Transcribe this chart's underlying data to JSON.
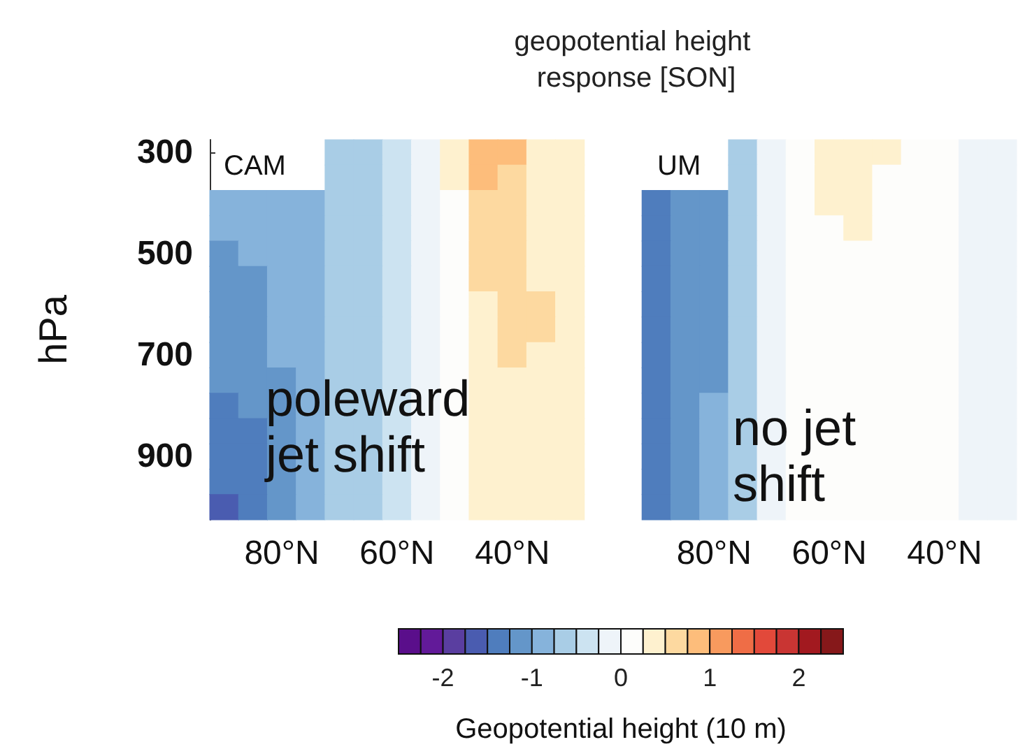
{
  "chart_data": {
    "type": "heatmap",
    "title": "geopotential height response [SON]",
    "ylabel": "hPa",
    "clabel": "Geopotential height (10 m)",
    "categories": [
      null,
      null,
      "80°N",
      null,
      null,
      null,
      "60°N",
      null,
      null,
      null,
      "40°N",
      null,
      null,
      null,
      null,
      null,
      null,
      "80°N",
      null,
      null,
      null,
      "60°N",
      null,
      null,
      null,
      "40°N",
      null,
      null
    ],
    "y_categories": [
      "300",
      null,
      null,
      null,
      "500",
      null,
      null,
      null,
      "700",
      null,
      null,
      null,
      "900",
      null,
      null
    ],
    "annotations": [
      "CAM",
      "poleward jet shift",
      "UM",
      "no jet shift"
    ],
    "clim": [
      -2.5,
      2.5
    ],
    "cticks": [
      -2,
      -1,
      0,
      1,
      2
    ],
    "cells": [
      [
        null,
        null,
        null,
        null,
        -0.7,
        -0.6,
        -0.4,
        -0.1,
        0.4,
        0.9,
        0.9,
        0.4,
        0.4,
        null,
        null,
        null,
        null,
        null,
        -0.6,
        -0.1,
        0.1,
        0.4,
        0.4,
        0.4,
        0.1,
        0.1,
        -0.1,
        -0.1
      ],
      [
        null,
        null,
        null,
        null,
        -0.7,
        -0.6,
        -0.4,
        -0.1,
        0.4,
        0.9,
        0.6,
        0.4,
        0.4,
        null,
        null,
        null,
        null,
        null,
        -0.6,
        -0.1,
        0.1,
        0.4,
        0.4,
        0.1,
        0.1,
        0.1,
        -0.1,
        -0.1
      ],
      [
        -0.9,
        -0.9,
        -0.9,
        -0.9,
        -0.6,
        -0.6,
        -0.4,
        -0.1,
        0.2,
        0.6,
        0.6,
        0.4,
        0.4,
        null,
        null,
        -1.4,
        -1.1,
        -1.1,
        -0.6,
        -0.1,
        0.1,
        0.4,
        0.4,
        0.1,
        0.1,
        0.1,
        -0.1,
        -0.1
      ],
      [
        -0.9,
        -0.9,
        -0.9,
        -0.9,
        -0.6,
        -0.6,
        -0.4,
        -0.1,
        0.2,
        0.6,
        0.6,
        0.4,
        0.4,
        null,
        null,
        -1.4,
        -1.1,
        -1.1,
        -0.6,
        -0.1,
        0.1,
        0.1,
        0.4,
        0.1,
        0.1,
        0.1,
        -0.1,
        -0.1
      ],
      [
        -1.1,
        -0.9,
        -0.9,
        -0.9,
        -0.6,
        -0.6,
        -0.4,
        -0.1,
        0.2,
        0.6,
        0.6,
        0.4,
        0.4,
        null,
        null,
        -1.4,
        -1.1,
        -1.1,
        -0.6,
        -0.1,
        0.1,
        0.1,
        0.1,
        0.1,
        0.1,
        0.1,
        -0.1,
        -0.1
      ],
      [
        -1.1,
        -1.1,
        -0.9,
        -0.9,
        -0.6,
        -0.6,
        -0.4,
        -0.1,
        0.2,
        0.6,
        0.6,
        0.4,
        0.4,
        null,
        null,
        -1.4,
        -1.1,
        -1.1,
        -0.6,
        -0.1,
        0.1,
        0.1,
        0.1,
        0.1,
        0.1,
        0.1,
        -0.1,
        -0.1
      ],
      [
        -1.1,
        -1.1,
        -0.9,
        -0.9,
        -0.6,
        -0.6,
        -0.4,
        -0.1,
        0.2,
        0.4,
        0.6,
        0.6,
        0.4,
        null,
        null,
        -1.4,
        -1.1,
        -1.1,
        -0.6,
        -0.1,
        0.1,
        0.1,
        0.1,
        0.1,
        0.1,
        0.1,
        -0.1,
        -0.1
      ],
      [
        -1.1,
        -1.1,
        -0.9,
        -0.9,
        -0.6,
        -0.6,
        -0.4,
        -0.1,
        0.2,
        0.4,
        0.6,
        0.6,
        0.4,
        null,
        null,
        -1.4,
        -1.1,
        -1.1,
        -0.6,
        -0.1,
        0.1,
        0.1,
        0.1,
        0.1,
        0.1,
        0.1,
        -0.1,
        -0.1
      ],
      [
        -1.1,
        -1.1,
        -0.9,
        -0.9,
        -0.6,
        -0.6,
        -0.4,
        -0.1,
        0.2,
        0.4,
        0.6,
        0.4,
        0.4,
        null,
        null,
        -1.4,
        -1.1,
        -1.1,
        -0.6,
        -0.1,
        0.1,
        0.1,
        0.1,
        0.1,
        0.1,
        0.1,
        -0.1,
        -0.1
      ],
      [
        -1.1,
        -1.1,
        -1.1,
        -0.9,
        -0.6,
        -0.6,
        -0.4,
        -0.1,
        0.2,
        0.4,
        0.4,
        0.4,
        0.4,
        null,
        null,
        -1.4,
        -1.1,
        -1.1,
        -0.6,
        -0.1,
        0.1,
        0.1,
        0.1,
        0.1,
        0.1,
        0.1,
        -0.1,
        -0.1
      ],
      [
        -1.4,
        -1.1,
        -1.1,
        -0.9,
        -0.6,
        -0.6,
        -0.4,
        -0.1,
        0.2,
        0.4,
        0.4,
        0.4,
        0.4,
        null,
        null,
        -1.4,
        -1.1,
        -0.9,
        -0.6,
        -0.1,
        0.1,
        0.1,
        0.1,
        0.1,
        0.1,
        0.1,
        -0.1,
        -0.1
      ],
      [
        -1.4,
        -1.4,
        -1.1,
        -0.9,
        -0.6,
        -0.6,
        -0.4,
        -0.1,
        0.2,
        0.4,
        0.4,
        0.4,
        0.4,
        null,
        null,
        -1.4,
        -1.1,
        -0.9,
        -0.6,
        -0.1,
        0.1,
        0.1,
        0.1,
        0.1,
        0.1,
        0.1,
        -0.1,
        -0.1
      ],
      [
        -1.4,
        -1.4,
        -1.1,
        -0.9,
        -0.6,
        -0.6,
        -0.4,
        -0.1,
        0.2,
        0.4,
        0.4,
        0.4,
        0.4,
        null,
        null,
        -1.4,
        -1.1,
        -0.9,
        -0.6,
        -0.1,
        0.1,
        0.1,
        0.1,
        0.1,
        0.1,
        0.1,
        -0.1,
        -0.1
      ],
      [
        -1.4,
        -1.4,
        -1.1,
        -0.9,
        -0.6,
        -0.6,
        -0.4,
        -0.1,
        0.2,
        0.4,
        0.4,
        0.4,
        0.4,
        null,
        null,
        -1.4,
        -1.1,
        -0.9,
        -0.6,
        -0.1,
        0.1,
        0.1,
        0.1,
        0.1,
        0.1,
        0.1,
        -0.1,
        -0.1
      ],
      [
        -1.6,
        -1.4,
        -1.1,
        -0.9,
        -0.6,
        -0.6,
        -0.4,
        -0.1,
        0.2,
        0.4,
        0.4,
        0.4,
        0.4,
        null,
        null,
        -1.4,
        -1.1,
        -0.9,
        -0.6,
        -0.1,
        0.1,
        0.1,
        0.1,
        0.1,
        0.1,
        0.1,
        -0.1,
        -0.1
      ]
    ]
  }
}
